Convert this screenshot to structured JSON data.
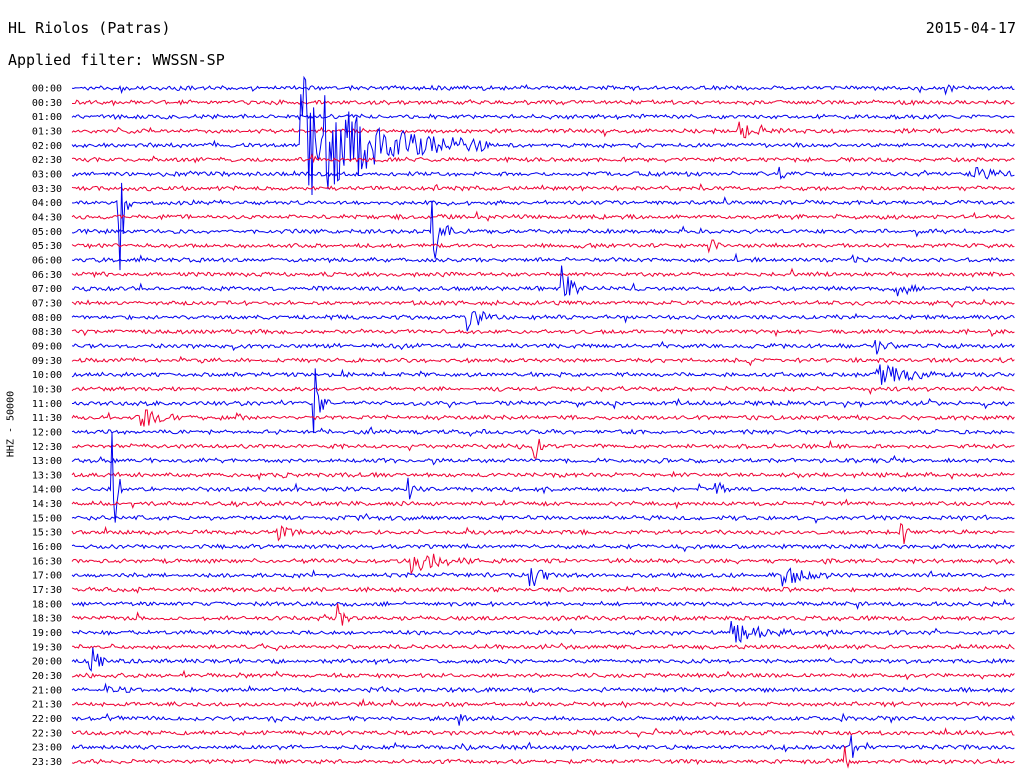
{
  "header": {
    "station": "HL Riolos (Patras)",
    "filter": "Applied filter: WWSSN-SP",
    "date": "2015-04-17"
  },
  "chart_data": {
    "type": "line",
    "title": "HL Riolos (Patras)",
    "subtitle": "Applied filter: WWSSN-SP",
    "ylabel": "HHZ - 50000",
    "date": "2015-04-17",
    "rows": [
      "00:00",
      "00:30",
      "01:00",
      "01:30",
      "02:00",
      "02:30",
      "03:00",
      "03:30",
      "04:00",
      "04:30",
      "05:00",
      "05:30",
      "06:00",
      "06:30",
      "07:00",
      "07:30",
      "08:00",
      "08:30",
      "09:00",
      "09:30",
      "10:00",
      "10:30",
      "11:00",
      "11:30",
      "12:00",
      "12:30",
      "13:00",
      "13:30",
      "14:00",
      "14:30",
      "15:00",
      "15:30",
      "16:00",
      "16:30",
      "17:00",
      "17:30",
      "18:00",
      "18:30",
      "19:00",
      "19:30",
      "20:00",
      "20:30",
      "21:00",
      "21:30",
      "22:00",
      "22:30",
      "23:00",
      "23:30"
    ],
    "series_colors": [
      "#0000ee",
      "#ee0033"
    ],
    "minutes_per_row": 30,
    "events": [
      {
        "row": 4,
        "minute": 7.3,
        "amp": 70,
        "dur": 6
      },
      {
        "row": 1,
        "minute": 1.2,
        "amp": 8,
        "dur": 0.5
      },
      {
        "row": 0,
        "minute": 27.8,
        "amp": 10,
        "dur": 0.3
      },
      {
        "row": 3,
        "minute": 21.2,
        "amp": 8,
        "dur": 1.5
      },
      {
        "row": 6,
        "minute": 22.5,
        "amp": 6,
        "dur": 0.6
      },
      {
        "row": 6,
        "minute": 28.5,
        "amp": 10,
        "dur": 1.5
      },
      {
        "row": 8,
        "minute": 1.5,
        "amp": 130,
        "dur": 0.4
      },
      {
        "row": 10,
        "minute": 11.5,
        "amp": 35,
        "dur": 0.6
      },
      {
        "row": 11,
        "minute": 20.3,
        "amp": 14,
        "dur": 0.4
      },
      {
        "row": 12,
        "minute": 24.8,
        "amp": 12,
        "dur": 0.4
      },
      {
        "row": 14,
        "minute": 15.6,
        "amp": 30,
        "dur": 0.6
      },
      {
        "row": 14,
        "minute": 26.3,
        "amp": 10,
        "dur": 0.8
      },
      {
        "row": 16,
        "minute": 12.6,
        "amp": 14,
        "dur": 1.2
      },
      {
        "row": 18,
        "minute": 25.5,
        "amp": 14,
        "dur": 0.8
      },
      {
        "row": 20,
        "minute": 25.6,
        "amp": 12,
        "dur": 2.5
      },
      {
        "row": 22,
        "minute": 7.7,
        "amp": 40,
        "dur": 0.5
      },
      {
        "row": 23,
        "minute": 2.2,
        "amp": 10,
        "dur": 1.5
      },
      {
        "row": 25,
        "minute": 14.7,
        "amp": 30,
        "dur": 0.3
      },
      {
        "row": 28,
        "minute": 1.3,
        "amp": 130,
        "dur": 0.3
      },
      {
        "row": 28,
        "minute": 10.7,
        "amp": 10,
        "dur": 0.5
      },
      {
        "row": 28,
        "minute": 20.5,
        "amp": 10,
        "dur": 0.5
      },
      {
        "row": 31,
        "minute": 6.5,
        "amp": 12,
        "dur": 0.8
      },
      {
        "row": 31,
        "minute": 26.4,
        "amp": 16,
        "dur": 0.3
      },
      {
        "row": 33,
        "minute": 10.8,
        "amp": 14,
        "dur": 2.2
      },
      {
        "row": 34,
        "minute": 14.6,
        "amp": 14,
        "dur": 0.8
      },
      {
        "row": 34,
        "minute": 22.6,
        "amp": 12,
        "dur": 1.5
      },
      {
        "row": 37,
        "minute": 8.5,
        "amp": 16,
        "dur": 0.4
      },
      {
        "row": 38,
        "minute": 21.0,
        "amp": 10,
        "dur": 2.5
      },
      {
        "row": 40,
        "minute": 0.6,
        "amp": 18,
        "dur": 0.6
      },
      {
        "row": 42,
        "minute": 1.1,
        "amp": 6,
        "dur": 1.2
      },
      {
        "row": 44,
        "minute": 12.3,
        "amp": 5,
        "dur": 0.4
      },
      {
        "row": 46,
        "minute": 24.8,
        "amp": 12,
        "dur": 0.2
      },
      {
        "row": 47,
        "minute": 24.6,
        "amp": 14,
        "dur": 0.2
      }
    ]
  }
}
